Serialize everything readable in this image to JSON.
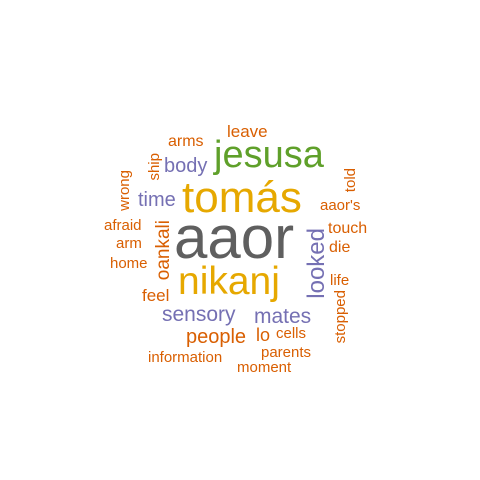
{
  "palette": {
    "dark": "#5f5f5f",
    "gold": "#e6a800",
    "green": "#5fa02a",
    "purple": "#7570b3",
    "orange": "#d95f02"
  },
  "words": {
    "aaor": "aaor",
    "tomas": "tomás",
    "nikanj": "nikanj",
    "jesusa": "jesusa",
    "looked": "looked",
    "oankali": "oankali",
    "sensory": "sensory",
    "mates": "mates",
    "body": "body",
    "time": "time",
    "people": "people",
    "leave": "leave",
    "arms": "arms",
    "ship": "ship",
    "wrong": "wrong",
    "afraid": "afraid",
    "arm": "arm",
    "home": "home",
    "feel": "feel",
    "information": "information",
    "moment": "moment",
    "parents": "parents",
    "cells": "cells",
    "lo": "lo",
    "stopped": "stopped",
    "life": "life",
    "die": "die",
    "touch": "touch",
    "aaors": "aaor's",
    "told": "told"
  }
}
